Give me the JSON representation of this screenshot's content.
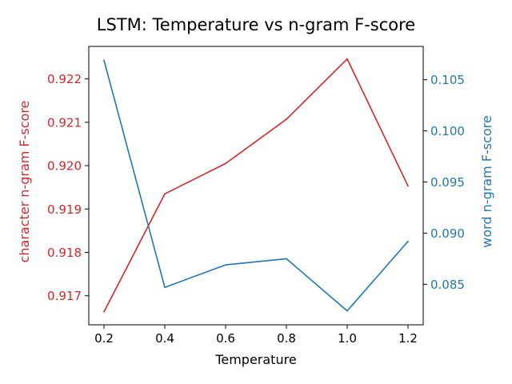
{
  "chart_data": {
    "type": "line",
    "title": "LSTM: Temperature vs n-gram F-score",
    "xlabel": "Temperature",
    "ylabel_left": "character n-gram F-score",
    "ylabel_right": "word n-gram F-score",
    "x": [
      0.2,
      0.4,
      0.6,
      0.8,
      1.0,
      1.2
    ],
    "x_ticks": [
      "0.2",
      "0.4",
      "0.6",
      "0.8",
      "1.0",
      "1.2"
    ],
    "xlim": [
      0.15,
      1.25
    ],
    "y_left_ticks": [
      "0.917",
      "0.918",
      "0.919",
      "0.920",
      "0.921",
      "0.922"
    ],
    "y_right_ticks": [
      "0.085",
      "0.090",
      "0.095",
      "0.100",
      "0.105"
    ],
    "ylim_left": [
      0.91633,
      0.92275
    ],
    "ylim_right": [
      0.08104,
      0.10826
    ],
    "grid": false,
    "series": [
      {
        "axis": "left",
        "color": "#d62728",
        "values": [
          0.91663,
          0.91935,
          0.92005,
          0.92107,
          0.92246,
          0.91953
        ]
      },
      {
        "axis": "right",
        "color": "#1f77b4",
        "values": [
          0.1069,
          0.0847,
          0.0869,
          0.0875,
          0.0824,
          0.0892
        ]
      }
    ]
  }
}
